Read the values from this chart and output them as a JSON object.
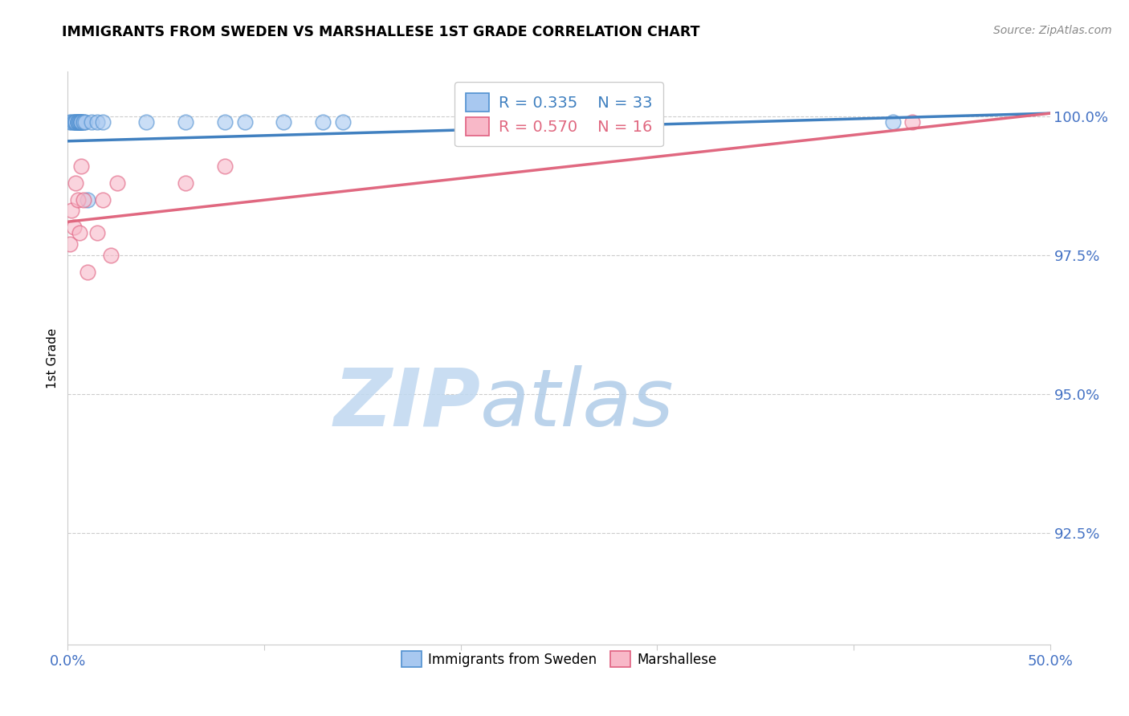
{
  "title": "IMMIGRANTS FROM SWEDEN VS MARSHALLESE 1ST GRADE CORRELATION CHART",
  "source": "Source: ZipAtlas.com",
  "ylabel": "1st Grade",
  "ylabel_ticks": [
    "100.0%",
    "97.5%",
    "95.0%",
    "92.5%"
  ],
  "ylabel_values": [
    1.0,
    0.975,
    0.95,
    0.925
  ],
  "xticks": [
    0.0,
    0.1,
    0.2,
    0.3,
    0.4,
    0.5
  ],
  "xticklabels": [
    "0.0%",
    "",
    "",
    "",
    "",
    "50.0%"
  ],
  "xmin": 0.0,
  "xmax": 0.5,
  "ymin": 0.905,
  "ymax": 1.008,
  "legend_R_sweden": "R = 0.335",
  "legend_N_sweden": "N = 33",
  "legend_R_marshallese": "R = 0.570",
  "legend_N_marshallese": "N = 16",
  "color_sweden_fill": "#A8C8F0",
  "color_sweden_edge": "#5090D0",
  "color_marshallese_fill": "#F8B8C8",
  "color_marshallese_edge": "#E06080",
  "color_sweden_line": "#4080C0",
  "color_marshallese_line": "#E06880",
  "color_axis_labels": "#4472C4",
  "watermark_zip_color": "#C8DCF0",
  "watermark_atlas_color": "#B0C8E8",
  "sw_x": [
    0.001,
    0.002,
    0.003,
    0.003,
    0.004,
    0.004,
    0.004,
    0.005,
    0.005,
    0.005,
    0.005,
    0.006,
    0.006,
    0.006,
    0.007,
    0.007,
    0.007,
    0.007,
    0.008,
    0.008,
    0.009,
    0.01,
    0.012,
    0.015,
    0.018,
    0.04,
    0.06,
    0.08,
    0.09,
    0.11,
    0.13,
    0.14,
    0.42
  ],
  "sw_y": [
    0.999,
    0.999,
    0.999,
    0.999,
    0.999,
    0.999,
    0.999,
    0.999,
    0.999,
    0.999,
    0.999,
    0.999,
    0.999,
    0.999,
    0.999,
    0.999,
    0.999,
    0.999,
    0.999,
    0.999,
    0.999,
    0.985,
    0.999,
    0.999,
    0.999,
    0.999,
    0.999,
    0.999,
    0.999,
    0.999,
    0.999,
    0.999,
    0.999
  ],
  "ma_x": [
    0.001,
    0.002,
    0.003,
    0.004,
    0.005,
    0.006,
    0.007,
    0.008,
    0.01,
    0.015,
    0.018,
    0.022,
    0.025,
    0.06,
    0.08,
    0.43
  ],
  "ma_y": [
    0.977,
    0.983,
    0.98,
    0.988,
    0.985,
    0.979,
    0.991,
    0.985,
    0.972,
    0.979,
    0.985,
    0.975,
    0.988,
    0.988,
    0.991,
    0.999
  ],
  "sw_line_x": [
    0.0,
    0.5
  ],
  "sw_line_y": [
    0.9955,
    1.0005
  ],
  "ma_line_x": [
    0.0,
    0.5
  ],
  "ma_line_y": [
    0.981,
    1.0005
  ]
}
